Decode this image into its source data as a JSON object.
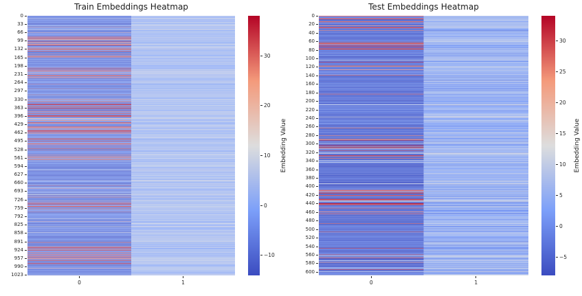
{
  "figure": {
    "background": "#ffffff"
  },
  "colormap": {
    "name": "coolwarm",
    "anchors": [
      "#3b4cc0",
      "#7c9ff9",
      "#dddddd",
      "#f49a7b",
      "#b40426"
    ]
  },
  "chart_data": [
    {
      "type": "heatmap",
      "title": "Train Embeddings Heatmap",
      "rows": 1024,
      "cols": 2,
      "x_tick_labels": [
        "0",
        "1"
      ],
      "y_tick_step": 33,
      "y_tick_labels": [
        "0",
        "33",
        "66",
        "99",
        "132",
        "165",
        "198",
        "231",
        "264",
        "297",
        "330",
        "363",
        "396",
        "429",
        "462",
        "495",
        "528",
        "561",
        "594",
        "627",
        "660",
        "693",
        "726",
        "759",
        "792",
        "825",
        "858",
        "891",
        "924",
        "957",
        "990",
        "1023"
      ],
      "vmin": -14,
      "vmax": 38,
      "colorbar": {
        "label": "Embedding Value",
        "tick_values": [
          30,
          20,
          10,
          0,
          -10
        ],
        "tick_labels": [
          "30",
          "20",
          "10",
          "0",
          "−10"
        ]
      },
      "description": "Column 0: predominantly dark blue values with frequent red high-value streak rows and occasional near-white rows. Column 1: light-medium blue striped values.",
      "texture": {
        "seed": 11,
        "cluster_len": 41,
        "cluster_prob": 0.45,
        "cluster_mult": 2.6,
        "cluster_base": 0.25,
        "col0": {
          "base": [
            -13,
            -3
          ],
          "mid": [
            -3,
            2
          ],
          "mid_prob": 0.14,
          "red": [
            26,
            38
          ],
          "red_prob": 0.085,
          "light": [
            10,
            15
          ],
          "light_prob": 0.035
        },
        "col1": {
          "base": [
            -1,
            9
          ],
          "dark": [
            -3,
            0
          ],
          "dark_prob": 0.1,
          "light": [
            10,
            14
          ]
        }
      }
    },
    {
      "type": "heatmap",
      "title": "Test Embeddings Heatmap",
      "rows": 608,
      "cols": 2,
      "x_tick_labels": [
        "0",
        "1"
      ],
      "y_tick_step": 20,
      "y_tick_labels": [
        "0",
        "20",
        "40",
        "60",
        "80",
        "100",
        "120",
        "140",
        "160",
        "180",
        "200",
        "220",
        "240",
        "260",
        "280",
        "300",
        "320",
        "340",
        "360",
        "380",
        "400",
        "420",
        "440",
        "460",
        "480",
        "500",
        "520",
        "540",
        "560",
        "580",
        "600"
      ],
      "vmin": -8,
      "vmax": 34,
      "colorbar": {
        "label": "Embedding Value",
        "tick_values": [
          30,
          25,
          20,
          15,
          10,
          5,
          0,
          -5
        ],
        "tick_labels": [
          "30",
          "25",
          "20",
          "15",
          "10",
          "5",
          "0",
          "−5"
        ]
      },
      "description": "Column 0: predominantly dark blue values with frequent red high-value streak rows. Column 1: light-medium blue striped values.",
      "texture": {
        "seed": 7,
        "cluster_len": 29,
        "cluster_prob": 0.5,
        "cluster_mult": 2.2,
        "cluster_base": 0.3,
        "col0": {
          "base": [
            -8,
            -2
          ],
          "mid": [
            -2,
            1
          ],
          "mid_prob": 0.12,
          "red": [
            25,
            34
          ],
          "red_prob": 0.09,
          "light": [
            8,
            13
          ],
          "light_prob": 0.03
        },
        "col1": {
          "base": [
            0,
            10
          ],
          "dark": [
            -2,
            1
          ],
          "dark_prob": 0.08,
          "light": [
            11,
            14
          ]
        }
      }
    }
  ]
}
